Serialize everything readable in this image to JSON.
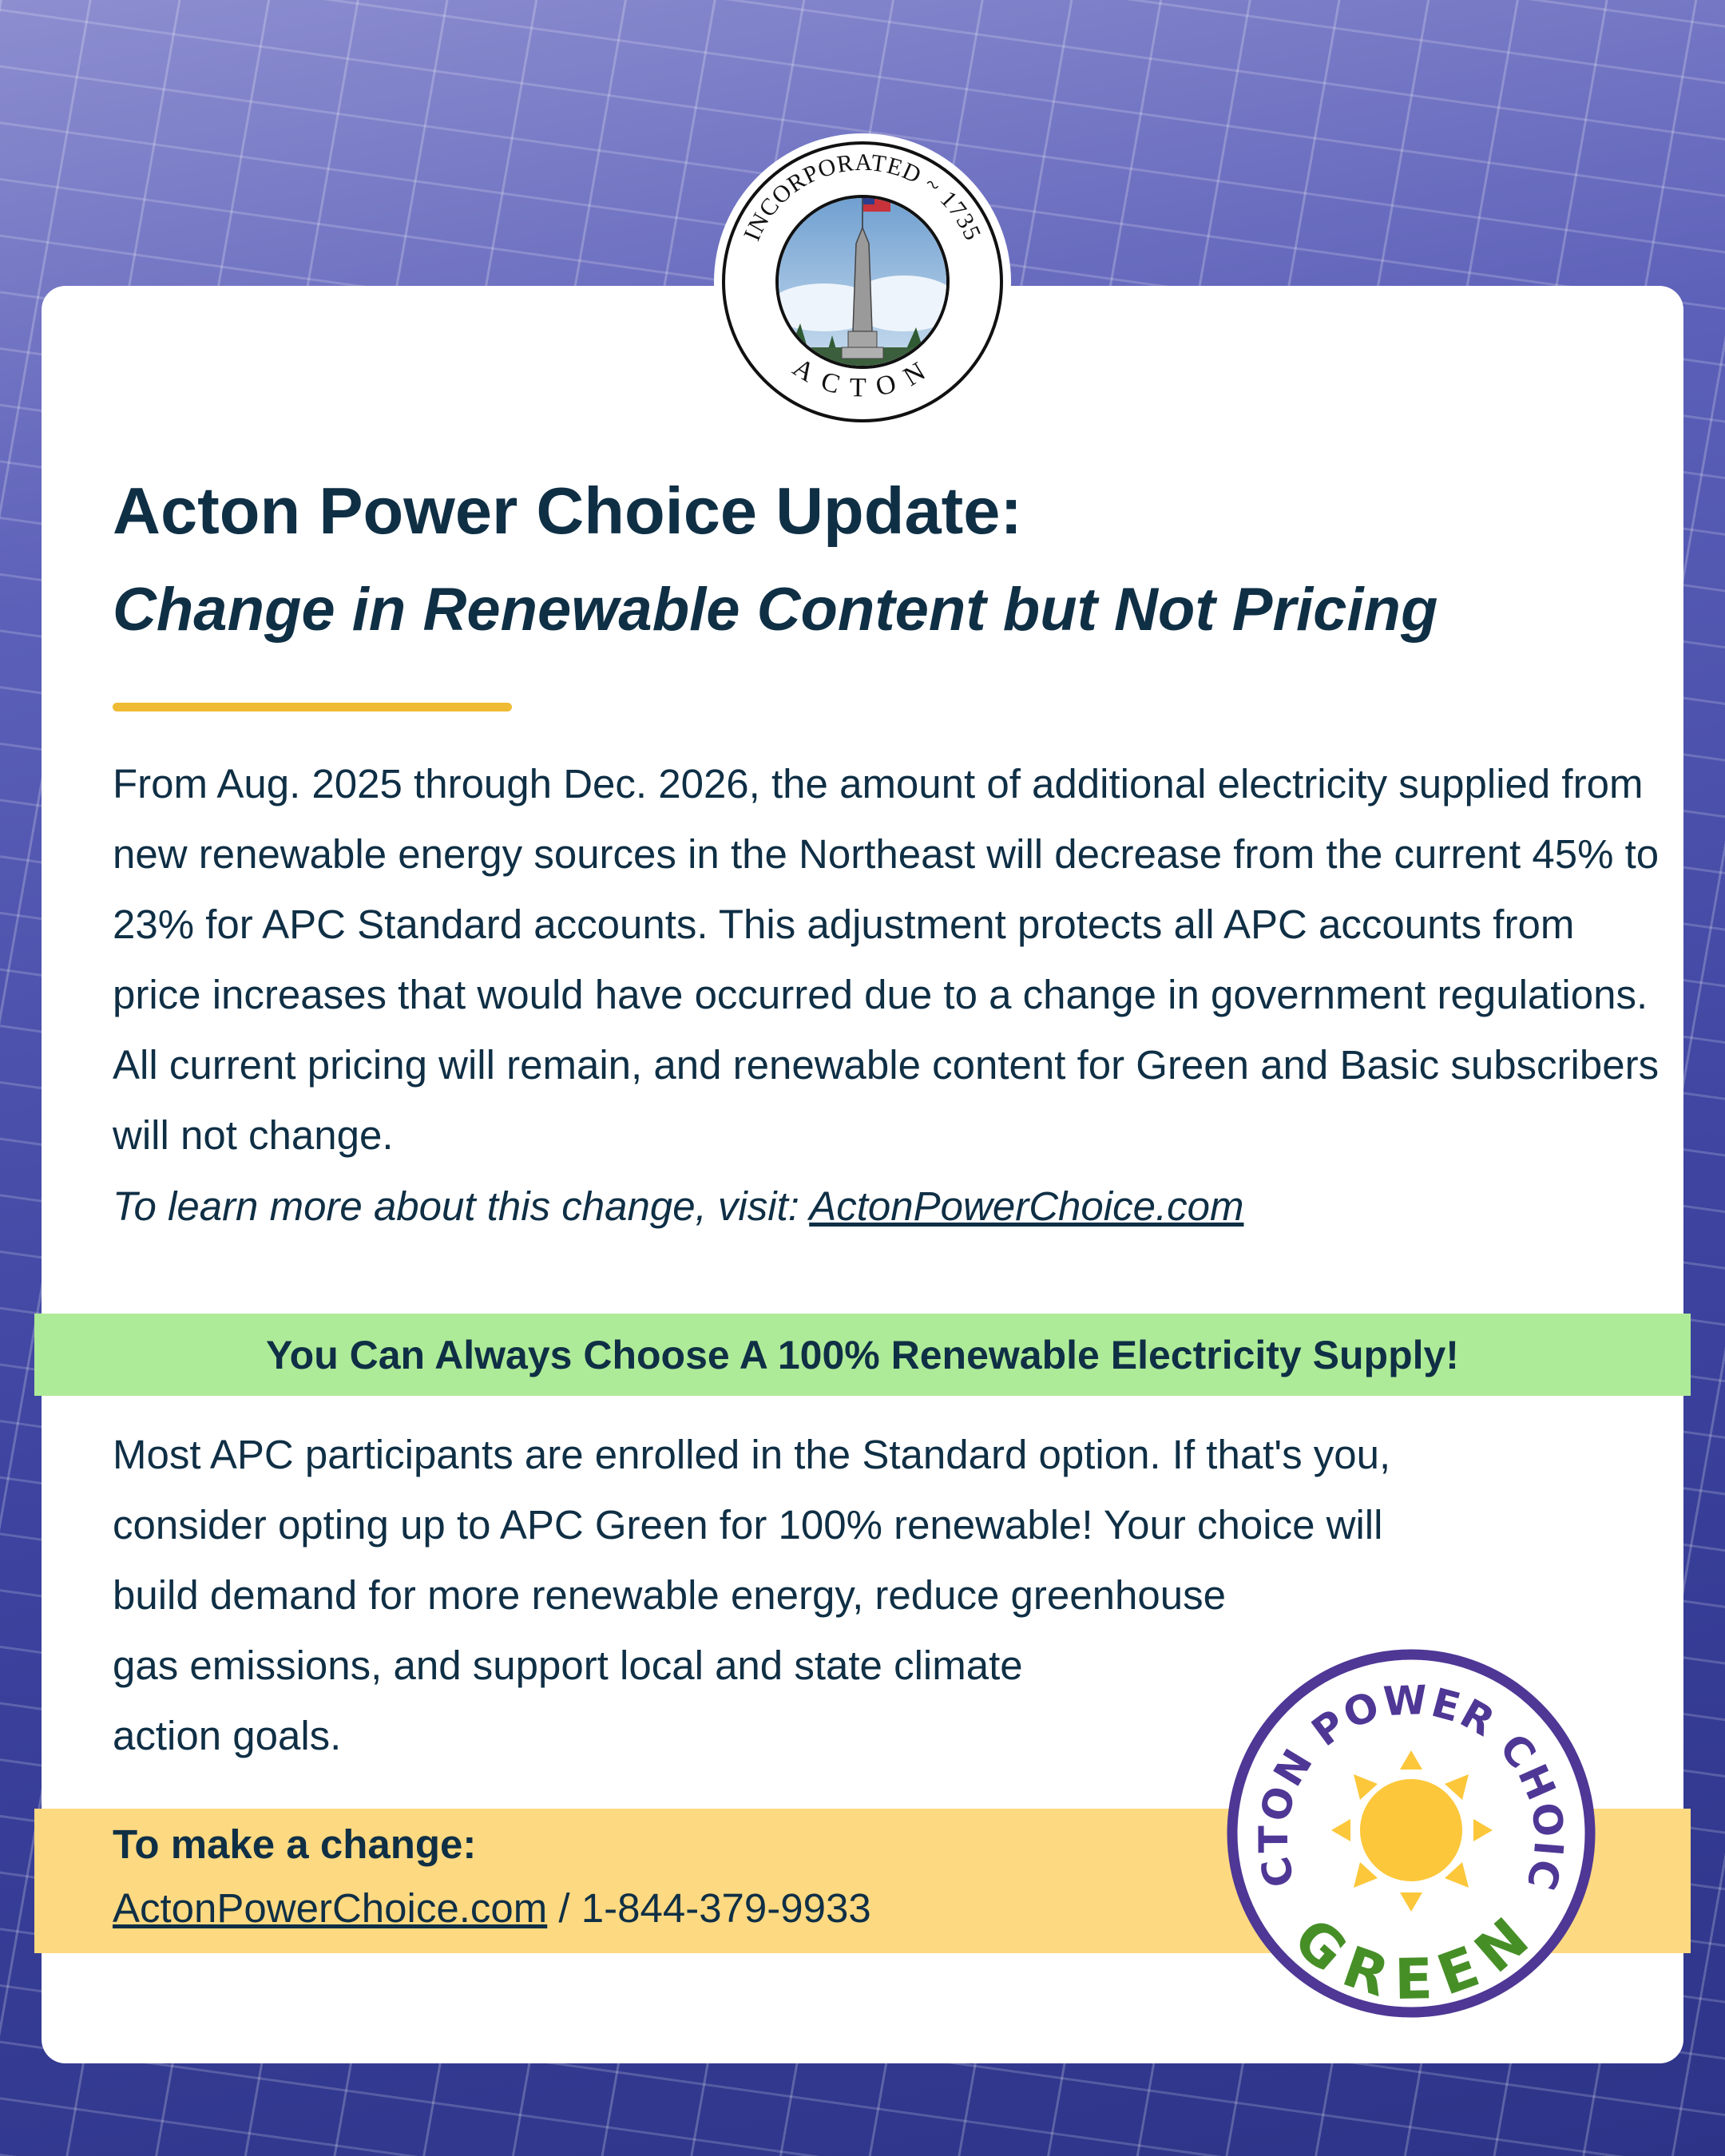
{
  "seal": {
    "top_text": "INCORPORATED ~ 1735",
    "bottom_text": "ACTON"
  },
  "header": {
    "title": "Acton Power Choice Update:",
    "subtitle": "Change in Renewable Content but Not Pricing"
  },
  "intro": {
    "paragraph": "From Aug. 2025 through Dec. 2026, the amount of additional electricity supplied from new renewable energy sources in the Northeast will decrease from the current 45% to 23% for APC Standard accounts. This adjustment protects all APC accounts from price increases that would have occurred due to a change in government regulations. All current pricing will remain, and renewable content for Green and Basic subscribers will not change.",
    "learn_more_prefix": "To learn more about this change, visit: ",
    "learn_more_link": "ActonPowerChoice.com"
  },
  "banner": {
    "text": "You Can Always Choose A 100% Renewable Electricity Supply!"
  },
  "body": {
    "lines": [
      "Most APC participants are enrolled in the Standard option. If that's you,",
      "consider opting up to APC Green for 100% renewable! Your choice will",
      "build demand for more renewable energy, reduce greenhouse",
      "gas emissions, and support local and state climate",
      "action goals."
    ]
  },
  "contact": {
    "label": "To make a change:",
    "link": "ActonPowerChoice.com",
    "separator": " / ",
    "phone": "1-844-379-9933"
  },
  "badge": {
    "top_text": "ACTON POWER CHOICE",
    "bottom_text": "GREEN",
    "icon": "sun-icon"
  },
  "colors": {
    "text": "#0f2f45",
    "accent_rule": "#f0bb34",
    "banner_green": "#aeeb98",
    "band_yellow": "#fdd981",
    "badge_purple": "#4e3795",
    "badge_green": "#468f27",
    "sun": "#fcc73a"
  }
}
